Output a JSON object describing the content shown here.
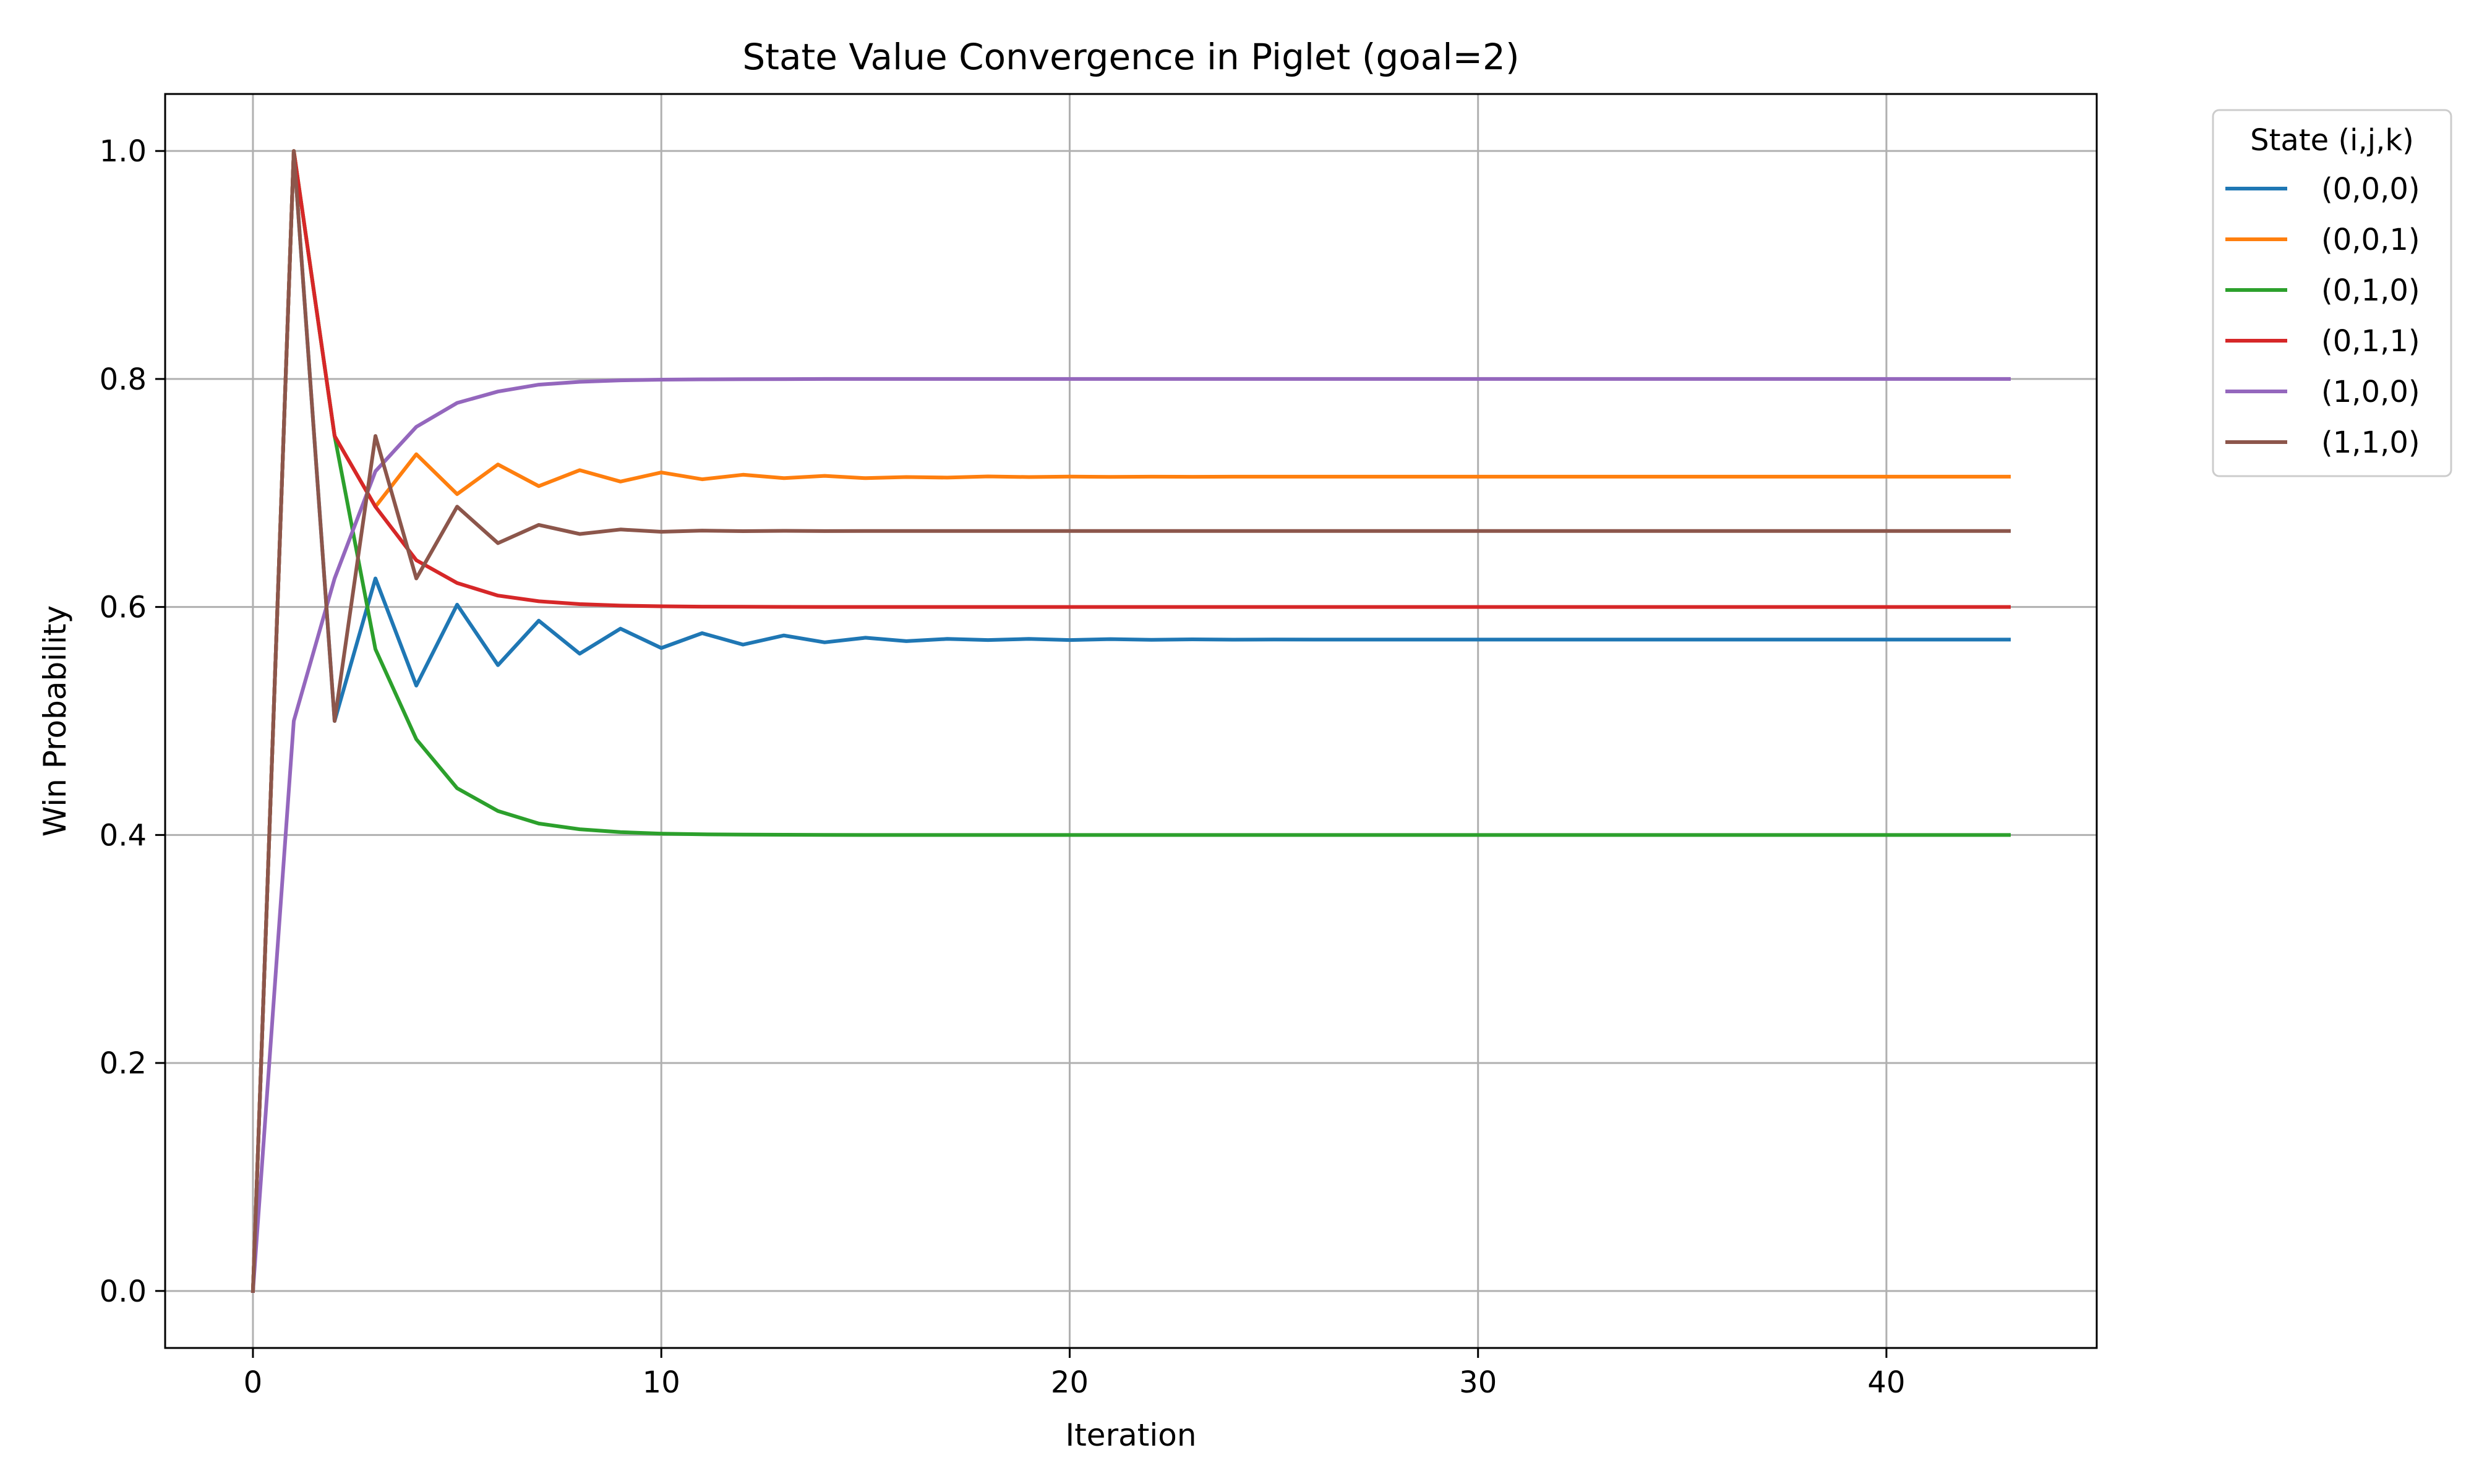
{
  "chart_data": {
    "type": "line",
    "title": "State Value Convergence in Piglet (goal=2)",
    "xlabel": "Iteration",
    "ylabel": "Win Probability",
    "xlim": [
      -2.15,
      45.15
    ],
    "ylim": [
      -0.05,
      1.05
    ],
    "xticks": [
      0,
      10,
      20,
      30,
      40
    ],
    "xtick_labels": [
      "0",
      "10",
      "20",
      "30",
      "40"
    ],
    "yticks": [
      0.0,
      0.2,
      0.4,
      0.6,
      0.8,
      1.0
    ],
    "ytick_labels": [
      "0.0",
      "0.2",
      "0.4",
      "0.6",
      "0.8",
      "1.0"
    ],
    "grid": true,
    "legend": {
      "title": "State (i,j,k)",
      "placement": "outside-top-right"
    },
    "x": [
      0,
      1,
      2,
      3,
      4,
      5,
      6,
      7,
      8,
      9,
      10,
      11,
      12,
      13,
      14,
      15,
      16,
      17,
      18,
      19,
      20,
      21,
      22,
      23,
      24,
      25,
      26,
      27,
      28,
      29,
      30,
      31,
      32,
      33,
      34,
      35,
      36,
      37,
      38,
      39,
      40,
      41,
      42,
      43
    ],
    "series": [
      {
        "name": "(0,0,0)",
        "color": "#1f77b4",
        "values": [
          0,
          1,
          0.5,
          0.625,
          0.531,
          0.602,
          0.549,
          0.588,
          0.559,
          0.581,
          0.564,
          0.577,
          0.567,
          0.575,
          0.569,
          0.573,
          0.57,
          0.572,
          0.571,
          0.572,
          0.571,
          0.5718,
          0.5712,
          0.5716,
          0.5713,
          0.5715,
          0.5714,
          0.5714,
          0.5714,
          0.5714,
          0.5714,
          0.5714,
          0.5714,
          0.5714,
          0.5714,
          0.5714,
          0.5714,
          0.5714,
          0.5714,
          0.5714,
          0.5714,
          0.5714,
          0.5714,
          0.5714
        ]
      },
      {
        "name": "(0,0,1)",
        "color": "#ff7f0e",
        "values": [
          0,
          1,
          0.75,
          0.688,
          0.734,
          0.699,
          0.725,
          0.706,
          0.72,
          0.71,
          0.718,
          0.712,
          0.716,
          0.713,
          0.715,
          0.713,
          0.714,
          0.7135,
          0.7145,
          0.714,
          0.7144,
          0.7141,
          0.7143,
          0.7142,
          0.7143,
          0.7143,
          0.7143,
          0.7143,
          0.7143,
          0.7143,
          0.7143,
          0.7143,
          0.7143,
          0.7143,
          0.7143,
          0.7143,
          0.7143,
          0.7143,
          0.7143,
          0.7143,
          0.7143,
          0.7143,
          0.7143,
          0.7143
        ]
      },
      {
        "name": "(0,1,0)",
        "color": "#2ca02c",
        "values": [
          0,
          1,
          0.75,
          0.563,
          0.484,
          0.441,
          0.421,
          0.41,
          0.405,
          0.4025,
          0.4012,
          0.4006,
          0.4003,
          0.4002,
          0.4001,
          0.4,
          0.4,
          0.4,
          0.4,
          0.4,
          0.4,
          0.4,
          0.4,
          0.4,
          0.4,
          0.4,
          0.4,
          0.4,
          0.4,
          0.4,
          0.4,
          0.4,
          0.4,
          0.4,
          0.4,
          0.4,
          0.4,
          0.4,
          0.4,
          0.4,
          0.4,
          0.4,
          0.4,
          0.4
        ]
      },
      {
        "name": "(0,1,1)",
        "color": "#d62728",
        "values": [
          0,
          1,
          0.75,
          0.688,
          0.641,
          0.621,
          0.61,
          0.605,
          0.6025,
          0.6012,
          0.6006,
          0.6003,
          0.6002,
          0.6001,
          0.6,
          0.6,
          0.6,
          0.6,
          0.6,
          0.6,
          0.6,
          0.6,
          0.6,
          0.6,
          0.6,
          0.6,
          0.6,
          0.6,
          0.6,
          0.6,
          0.6,
          0.6,
          0.6,
          0.6,
          0.6,
          0.6,
          0.6,
          0.6,
          0.6,
          0.6,
          0.6,
          0.6,
          0.6,
          0.6
        ]
      },
      {
        "name": "(1,0,0)",
        "color": "#9467bd",
        "values": [
          0,
          0.5,
          0.625,
          0.719,
          0.758,
          0.779,
          0.789,
          0.795,
          0.7975,
          0.7988,
          0.7994,
          0.7997,
          0.7998,
          0.7999,
          0.8,
          0.8,
          0.8,
          0.8,
          0.8,
          0.8,
          0.8,
          0.8,
          0.8,
          0.8,
          0.8,
          0.8,
          0.8,
          0.8,
          0.8,
          0.8,
          0.8,
          0.8,
          0.8,
          0.8,
          0.8,
          0.8,
          0.8,
          0.8,
          0.8,
          0.8,
          0.8,
          0.8,
          0.8,
          0.8
        ]
      },
      {
        "name": "(1,1,0)",
        "color": "#8c564b",
        "values": [
          0,
          1,
          0.5,
          0.75,
          0.625,
          0.688,
          0.656,
          0.672,
          0.664,
          0.668,
          0.666,
          0.667,
          0.6665,
          0.6668,
          0.6666,
          0.6667,
          0.6667,
          0.6667,
          0.6667,
          0.6667,
          0.6667,
          0.6667,
          0.6667,
          0.6667,
          0.6667,
          0.6667,
          0.6667,
          0.6667,
          0.6667,
          0.6667,
          0.6667,
          0.6667,
          0.6667,
          0.6667,
          0.6667,
          0.6667,
          0.6667,
          0.6667,
          0.6667,
          0.6667,
          0.6667,
          0.6667,
          0.6667,
          0.6667
        ]
      }
    ]
  }
}
